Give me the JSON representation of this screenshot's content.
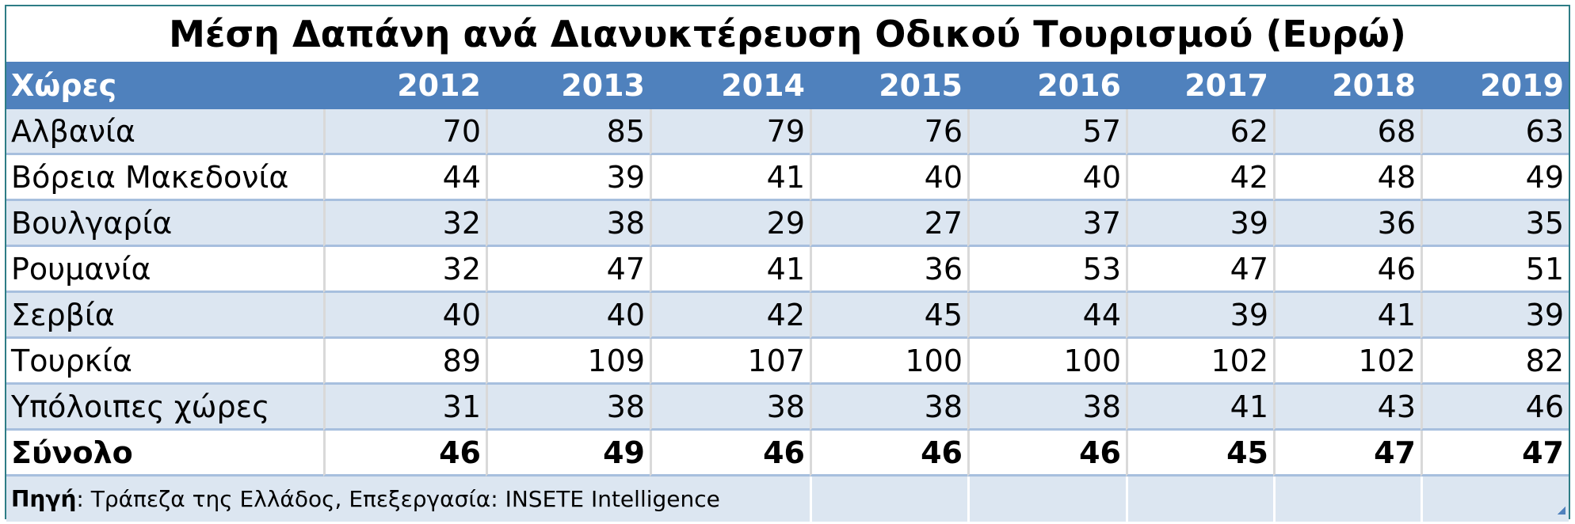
{
  "chart_data": {
    "type": "table",
    "title": "Μέση Δαπάνη ανά Διανυκτέρευση Οδικού Τουρισμού (Ευρώ)",
    "columns": [
      "Χώρες",
      "2012",
      "2013",
      "2014",
      "2015",
      "2016",
      "2017",
      "2018",
      "2019"
    ],
    "rows": [
      {
        "label": "Αλβανία",
        "values": [
          70,
          85,
          79,
          76,
          57,
          62,
          68,
          63
        ]
      },
      {
        "label": "Βόρεια Μακεδονία",
        "values": [
          44,
          39,
          41,
          40,
          40,
          42,
          48,
          49
        ]
      },
      {
        "label": "Βουλγαρία",
        "values": [
          32,
          38,
          29,
          27,
          37,
          39,
          36,
          35
        ]
      },
      {
        "label": "Ρουμανία",
        "values": [
          32,
          47,
          41,
          36,
          53,
          47,
          46,
          51
        ]
      },
      {
        "label": "Σερβία",
        "values": [
          40,
          40,
          42,
          45,
          44,
          39,
          41,
          39
        ]
      },
      {
        "label": "Τουρκία",
        "values": [
          89,
          109,
          107,
          100,
          100,
          102,
          102,
          82
        ]
      },
      {
        "label": "Υπόλοιπες χώρες",
        "values": [
          31,
          38,
          38,
          38,
          38,
          41,
          43,
          46
        ]
      },
      {
        "label": "Σύνολο",
        "values": [
          46,
          49,
          46,
          46,
          46,
          45,
          47,
          47
        ]
      }
    ],
    "source_label": "Πηγή",
    "source_text": ": Τράπεζα της Ελλάδος, Επεξεργασία: INSETE Intelligence"
  },
  "colors": {
    "header_bg": "#4f81bd",
    "shaded_row": "#dce6f1",
    "border": "#2e7d86"
  }
}
